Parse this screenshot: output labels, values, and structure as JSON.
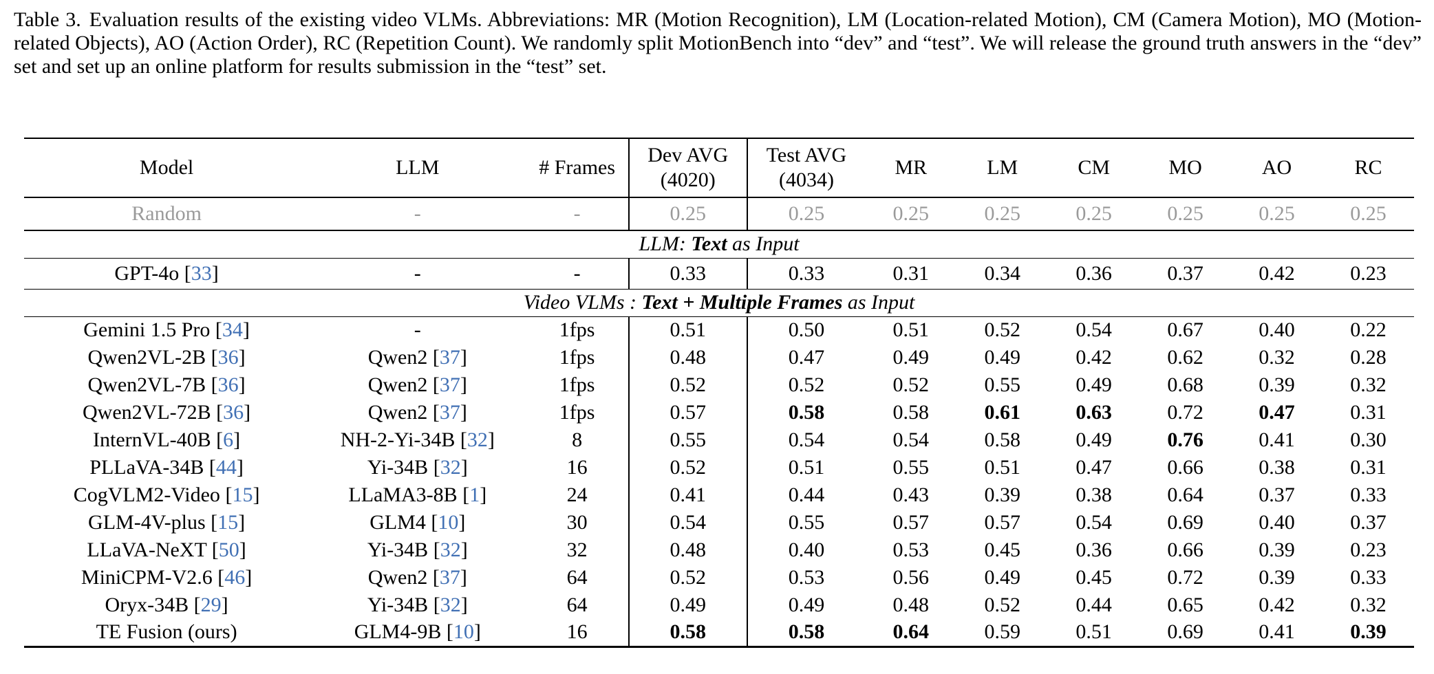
{
  "caption": {
    "label": "Table 3.",
    "text": "Evaluation results of the existing video VLMs. Abbreviations: MR (Motion Recognition), LM (Location-related Motion), CM (Camera Motion), MO (Motion-related Objects), AO (Action Order), RC (Repetition Count). We randomly split MotionBench into “dev” and “test”. We will release the ground truth answers in the “dev” set and set up an online platform for results submission in the “test” set."
  },
  "colors": {
    "citation_blue": "#4170b4",
    "muted_gray": "#9a9a9a"
  },
  "table": {
    "header": {
      "model": "Model",
      "llm": "LLM",
      "frames": "# Frames",
      "dev_avg": [
        "Dev AVG",
        "(4020)"
      ],
      "test_avg": [
        "Test AVG",
        "(4034)"
      ],
      "metrics": [
        "MR",
        "LM",
        "CM",
        "MO",
        "AO",
        "RC"
      ]
    },
    "random_row": {
      "model": {
        "name": "Random"
      },
      "llm": {
        "name": "-"
      },
      "frames": "-",
      "values": [
        "0.25",
        "0.25",
        "0.25",
        "0.25",
        "0.25",
        "0.25",
        "0.25",
        "0.25"
      ],
      "bold": []
    },
    "sections": [
      {
        "title_parts": [
          {
            "text": "LLM: ",
            "bold": false
          },
          {
            "text": "Text",
            "bold": true
          },
          {
            "text": " as Input",
            "bold": false
          }
        ],
        "rows": [
          {
            "model": {
              "name": "GPT-4o",
              "cite": "33"
            },
            "llm": {
              "name": "-"
            },
            "frames": "-",
            "values": [
              "0.33",
              "0.33",
              "0.31",
              "0.34",
              "0.36",
              "0.37",
              "0.42",
              "0.23"
            ],
            "bold": []
          }
        ]
      },
      {
        "title_parts": [
          {
            "text": "Video VLMs : ",
            "bold": false
          },
          {
            "text": "Text + Multiple Frames",
            "bold": true
          },
          {
            "text": " as Input",
            "bold": false
          }
        ],
        "rows": [
          {
            "model": {
              "name": "Gemini 1.5 Pro",
              "cite": "34"
            },
            "llm": {
              "name": "-"
            },
            "frames": "1fps",
            "values": [
              "0.51",
              "0.50",
              "0.51",
              "0.52",
              "0.54",
              "0.67",
              "0.40",
              "0.22"
            ],
            "bold": []
          },
          {
            "model": {
              "name": "Qwen2VL-2B",
              "cite": "36"
            },
            "llm": {
              "name": "Qwen2",
              "cite": "37"
            },
            "frames": "1fps",
            "values": [
              "0.48",
              "0.47",
              "0.49",
              "0.49",
              "0.42",
              "0.62",
              "0.32",
              "0.28"
            ],
            "bold": []
          },
          {
            "model": {
              "name": "Qwen2VL-7B",
              "cite": "36"
            },
            "llm": {
              "name": "Qwen2",
              "cite": "37"
            },
            "frames": "1fps",
            "values": [
              "0.52",
              "0.52",
              "0.52",
              "0.55",
              "0.49",
              "0.68",
              "0.39",
              "0.32"
            ],
            "bold": []
          },
          {
            "model": {
              "name": "Qwen2VL-72B",
              "cite": "36"
            },
            "llm": {
              "name": "Qwen2",
              "cite": "37"
            },
            "frames": "1fps",
            "values": [
              "0.57",
              "0.58",
              "0.58",
              "0.61",
              "0.63",
              "0.72",
              "0.47",
              "0.31"
            ],
            "bold": [
              1,
              3,
              4,
              6
            ]
          },
          {
            "model": {
              "name": "InternVL-40B",
              "cite": "6"
            },
            "llm": {
              "name": "NH-2-Yi-34B",
              "cite": "32"
            },
            "frames": "8",
            "values": [
              "0.55",
              "0.54",
              "0.54",
              "0.58",
              "0.49",
              "0.76",
              "0.41",
              "0.30"
            ],
            "bold": [
              5
            ]
          },
          {
            "model": {
              "name": "PLLaVA-34B",
              "cite": "44"
            },
            "llm": {
              "name": "Yi-34B",
              "cite": "32"
            },
            "frames": "16",
            "values": [
              "0.52",
              "0.51",
              "0.55",
              "0.51",
              "0.47",
              "0.66",
              "0.38",
              "0.31"
            ],
            "bold": []
          },
          {
            "model": {
              "name": "CogVLM2-Video",
              "cite": "15"
            },
            "llm": {
              "name": "LLaMA3-8B",
              "cite": "1"
            },
            "frames": "24",
            "values": [
              "0.41",
              "0.44",
              "0.43",
              "0.39",
              "0.38",
              "0.64",
              "0.37",
              "0.33"
            ],
            "bold": []
          },
          {
            "model": {
              "name": "GLM-4V-plus",
              "cite": "15"
            },
            "llm": {
              "name": "GLM4",
              "cite": "10"
            },
            "frames": "30",
            "values": [
              "0.54",
              "0.55",
              "0.57",
              "0.57",
              "0.54",
              "0.69",
              "0.40",
              "0.37"
            ],
            "bold": []
          },
          {
            "model": {
              "name": "LLaVA-NeXT",
              "cite": "50"
            },
            "llm": {
              "name": "Yi-34B",
              "cite": "32"
            },
            "frames": "32",
            "values": [
              "0.48",
              "0.40",
              "0.53",
              "0.45",
              "0.36",
              "0.66",
              "0.39",
              "0.23"
            ],
            "bold": []
          },
          {
            "model": {
              "name": "MiniCPM-V2.6",
              "cite": "46"
            },
            "llm": {
              "name": "Qwen2",
              "cite": "37"
            },
            "frames": "64",
            "values": [
              "0.52",
              "0.53",
              "0.56",
              "0.49",
              "0.45",
              "0.72",
              "0.39",
              "0.33"
            ],
            "bold": []
          },
          {
            "model": {
              "name": "Oryx-34B",
              "cite": "29"
            },
            "llm": {
              "name": "Yi-34B",
              "cite": "32"
            },
            "frames": "64",
            "values": [
              "0.49",
              "0.49",
              "0.48",
              "0.52",
              "0.44",
              "0.65",
              "0.42",
              "0.32"
            ],
            "bold": []
          },
          {
            "model": {
              "name": "TE Fusion (ours)"
            },
            "llm": {
              "name": "GLM4-9B",
              "cite": "10"
            },
            "frames": "16",
            "values": [
              "0.58",
              "0.58",
              "0.64",
              "0.59",
              "0.51",
              "0.69",
              "0.41",
              "0.39"
            ],
            "bold": [
              0,
              1,
              2,
              7
            ]
          }
        ]
      }
    ]
  }
}
